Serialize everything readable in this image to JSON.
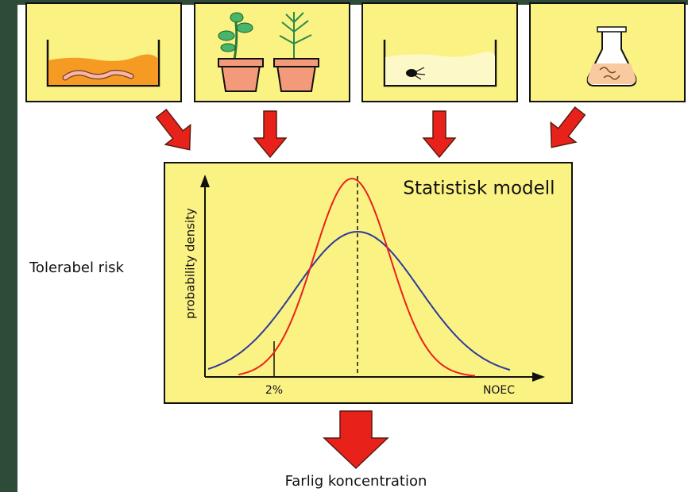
{
  "diagram": {
    "model_title": "Statistisk modell",
    "y_axis_label": "probability density",
    "marker_label": "2%",
    "x_axis_label": "NOEC",
    "left_label": "Tolerabel risk",
    "bottom_label": "Farlig koncentration"
  }
}
